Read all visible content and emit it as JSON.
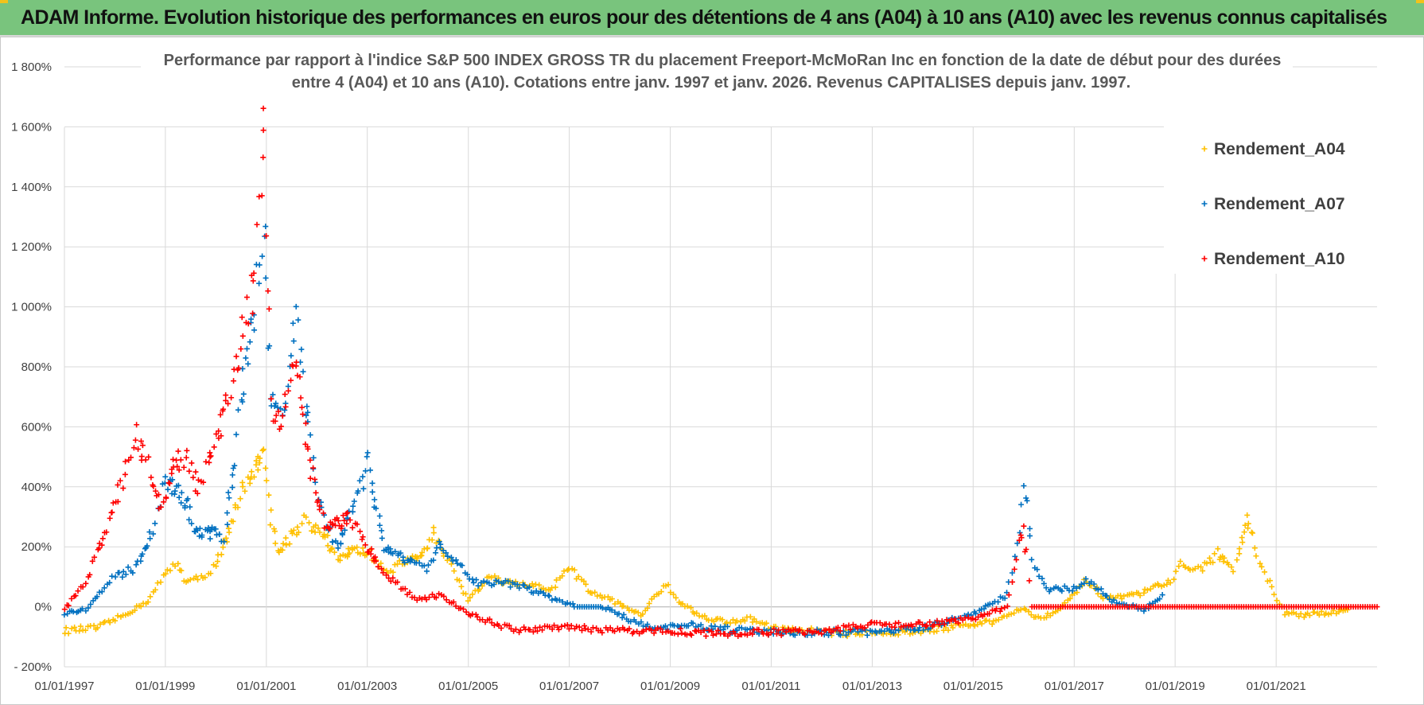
{
  "banner": {
    "title": "ADAM Informe. Evolution historique des performances en euros pour des détentions de 4 ans (A04) à 10 ans (A10) avec les revenus connus capitalisés"
  },
  "colors": {
    "banner_bg": "#79c47d",
    "a04": "#ffc000",
    "a07": "#0070c0",
    "a10": "#ff0000",
    "grid": "#d9d9d9"
  },
  "chart_data": {
    "type": "scatter",
    "title": "Performance par rapport à l'indice S&P 500 INDEX GROSS TR  du placement Freeport-McMoRan Inc en fonction de la date de début pour des durées",
    "subtitle": "entre 4 (A04) et 10 ans (A10).  Cotations entre janv. 1997 et janv. 2026. Revenus CAPITALISES depuis janv. 1997.",
    "marker": "plus",
    "x_axis": {
      "type": "date",
      "range": [
        "1997-01-01",
        "2023-01-01"
      ],
      "ticks": [
        "01/01/1997",
        "01/01/1999",
        "01/01/2001",
        "01/01/2003",
        "01/01/2005",
        "01/01/2007",
        "01/01/2009",
        "01/01/2011",
        "01/01/2013",
        "01/01/2015",
        "01/01/2017",
        "01/01/2019",
        "01/01/2021"
      ]
    },
    "y_axis": {
      "unit": "%",
      "range": [
        -200,
        1800
      ],
      "ticks": [
        "- 200%",
        "0%",
        "200%",
        "400%",
        "600%",
        "800%",
        "1 000%",
        "1 200%",
        "1 400%",
        "1 600%",
        "1 800%"
      ]
    },
    "grid": true,
    "legend": {
      "position": "top-right",
      "entries": [
        "Rendement_A04",
        "Rendement_A07",
        "Rendement_A10"
      ]
    },
    "series": [
      {
        "name": "Rendement_A04",
        "color": "#ffc000",
        "points": [
          [
            "1997-01-01",
            -80
          ],
          [
            "1997-09-01",
            -70
          ],
          [
            "1998-03-01",
            -30
          ],
          [
            "1998-09-01",
            20
          ],
          [
            "1999-01-01",
            110
          ],
          [
            "1999-04-01",
            150
          ],
          [
            "1999-06-01",
            80
          ],
          [
            "1999-10-01",
            100
          ],
          [
            "2000-01-01",
            140
          ],
          [
            "2000-04-01",
            250
          ],
          [
            "2000-07-01",
            380
          ],
          [
            "2000-09-01",
            410
          ],
          [
            "2000-11-01",
            480
          ],
          [
            "2000-12-15",
            520
          ],
          [
            "2001-02-01",
            300
          ],
          [
            "2001-04-01",
            180
          ],
          [
            "2001-07-01",
            240
          ],
          [
            "2001-10-01",
            290
          ],
          [
            "2002-03-01",
            240
          ],
          [
            "2002-06-01",
            150
          ],
          [
            "2002-10-01",
            200
          ],
          [
            "2003-01-01",
            180
          ],
          [
            "2003-06-01",
            120
          ],
          [
            "2003-10-01",
            150
          ],
          [
            "2004-01-01",
            160
          ],
          [
            "2004-05-01",
            250
          ],
          [
            "2004-09-01",
            130
          ],
          [
            "2005-01-01",
            20
          ],
          [
            "2005-06-01",
            100
          ],
          [
            "2005-10-01",
            80
          ],
          [
            "2006-03-01",
            70
          ],
          [
            "2006-09-01",
            60
          ],
          [
            "2007-01-01",
            130
          ],
          [
            "2007-06-01",
            50
          ],
          [
            "2008-01-01",
            10
          ],
          [
            "2008-06-01",
            -30
          ],
          [
            "2008-12-01",
            80
          ],
          [
            "2009-03-01",
            20
          ],
          [
            "2009-08-01",
            -30
          ],
          [
            "2010-02-01",
            -50
          ],
          [
            "2010-08-01",
            -40
          ],
          [
            "2011-01-01",
            -70
          ],
          [
            "2011-06-01",
            -80
          ],
          [
            "2012-01-01",
            -80
          ],
          [
            "2012-06-01",
            -90
          ],
          [
            "2013-01-01",
            -80
          ],
          [
            "2013-06-01",
            -90
          ],
          [
            "2014-01-01",
            -80
          ],
          [
            "2014-06-01",
            -70
          ],
          [
            "2015-01-01",
            -60
          ],
          [
            "2015-06-01",
            -50
          ],
          [
            "2016-01-01",
            0
          ],
          [
            "2016-04-01",
            -40
          ],
          [
            "2016-08-01",
            -20
          ],
          [
            "2017-01-01",
            40
          ],
          [
            "2017-04-01",
            90
          ],
          [
            "2017-08-01",
            30
          ],
          [
            "2018-01-01",
            30
          ],
          [
            "2018-06-01",
            50
          ],
          [
            "2018-12-01",
            90
          ],
          [
            "2019-03-01",
            150
          ],
          [
            "2019-07-01",
            120
          ],
          [
            "2019-11-01",
            180
          ],
          [
            "2020-03-01",
            120
          ],
          [
            "2020-06-01",
            290
          ],
          [
            "2020-09-01",
            150
          ],
          [
            "2020-12-01",
            60
          ],
          [
            "2021-03-01",
            -20
          ],
          [
            "2021-07-01",
            -30
          ],
          [
            "2022-01-01",
            -20
          ],
          [
            "2022-06-01",
            -10
          ]
        ]
      },
      {
        "name": "Rendement_A07",
        "color": "#0070c0",
        "points": [
          [
            "1997-01-01",
            -20
          ],
          [
            "1997-06-01",
            -10
          ],
          [
            "1998-01-01",
            100
          ],
          [
            "1998-06-01",
            130
          ],
          [
            "1998-10-01",
            250
          ],
          [
            "1999-01-01",
            420
          ],
          [
            "1999-05-01",
            380
          ],
          [
            "1999-08-01",
            260
          ],
          [
            "1999-11-01",
            250
          ],
          [
            "2000-03-01",
            230
          ],
          [
            "2000-06-01",
            560
          ],
          [
            "2000-08-01",
            800
          ],
          [
            "2000-10-01",
            1000
          ],
          [
            "2000-12-15",
            1300
          ],
          [
            "2001-02-01",
            700
          ],
          [
            "2001-05-01",
            620
          ],
          [
            "2001-08-01",
            1000
          ],
          [
            "2001-11-01",
            600
          ],
          [
            "2002-02-01",
            320
          ],
          [
            "2002-06-01",
            200
          ],
          [
            "2002-10-01",
            360
          ],
          [
            "2003-01-01",
            480
          ],
          [
            "2003-05-01",
            200
          ],
          [
            "2003-10-01",
            160
          ],
          [
            "2004-03-01",
            120
          ],
          [
            "2004-06-01",
            200
          ],
          [
            "2004-10-01",
            150
          ],
          [
            "2005-03-01",
            80
          ],
          [
            "2005-10-01",
            80
          ],
          [
            "2006-03-01",
            60
          ],
          [
            "2006-09-01",
            30
          ],
          [
            "2007-03-01",
            0
          ],
          [
            "2007-09-01",
            0
          ],
          [
            "2008-06-01",
            -60
          ],
          [
            "2009-01-01",
            -70
          ],
          [
            "2009-06-01",
            -60
          ],
          [
            "2010-01-01",
            -75
          ],
          [
            "2011-01-01",
            -85
          ],
          [
            "2012-01-01",
            -85
          ],
          [
            "2013-01-01",
            -85
          ],
          [
            "2014-01-01",
            -70
          ],
          [
            "2014-09-01",
            -40
          ],
          [
            "2015-03-01",
            -10
          ],
          [
            "2015-09-01",
            40
          ],
          [
            "2015-12-01",
            250
          ],
          [
            "2016-01-01",
            430
          ],
          [
            "2016-03-01",
            150
          ],
          [
            "2016-07-01",
            60
          ],
          [
            "2017-01-01",
            60
          ],
          [
            "2017-04-01",
            90
          ],
          [
            "2017-10-01",
            20
          ],
          [
            "2018-06-01",
            -10
          ],
          [
            "2018-10-01",
            40
          ]
        ]
      },
      {
        "name": "Rendement_A10",
        "color": "#ff0000",
        "points": [
          [
            "1997-01-01",
            -10
          ],
          [
            "1997-06-01",
            80
          ],
          [
            "1997-10-01",
            220
          ],
          [
            "1998-03-01",
            420
          ],
          [
            "1998-06-01",
            580
          ],
          [
            "1998-09-01",
            480
          ],
          [
            "1998-12-01",
            320
          ],
          [
            "1999-03-01",
            460
          ],
          [
            "1999-06-01",
            500
          ],
          [
            "1999-09-01",
            400
          ],
          [
            "2000-01-01",
            550
          ],
          [
            "2000-04-01",
            720
          ],
          [
            "2000-07-01",
            850
          ],
          [
            "2000-10-01",
            1100
          ],
          [
            "2000-12-15",
            1580
          ],
          [
            "2001-02-01",
            660
          ],
          [
            "2001-05-01",
            620
          ],
          [
            "2001-08-01",
            840
          ],
          [
            "2001-11-01",
            500
          ],
          [
            "2002-03-01",
            260
          ],
          [
            "2002-09-01",
            300
          ],
          [
            "2003-01-01",
            200
          ],
          [
            "2003-06-01",
            100
          ],
          [
            "2004-01-01",
            20
          ],
          [
            "2004-06-01",
            40
          ],
          [
            "2005-01-01",
            -20
          ],
          [
            "2005-06-01",
            -50
          ],
          [
            "2006-01-01",
            -80
          ],
          [
            "2006-06-01",
            -70
          ],
          [
            "2007-01-01",
            -70
          ],
          [
            "2008-01-01",
            -80
          ],
          [
            "2009-01-01",
            -80
          ],
          [
            "2010-01-01",
            -90
          ],
          [
            "2011-01-01",
            -85
          ],
          [
            "2012-01-01",
            -80
          ],
          [
            "2013-01-01",
            -60
          ],
          [
            "2014-01-01",
            -60
          ],
          [
            "2015-01-01",
            -40
          ],
          [
            "2015-09-01",
            0
          ],
          [
            "2016-01-01",
            290
          ],
          [
            "2016-03-01",
            0
          ],
          [
            "2023-01-01",
            0
          ]
        ]
      }
    ]
  }
}
